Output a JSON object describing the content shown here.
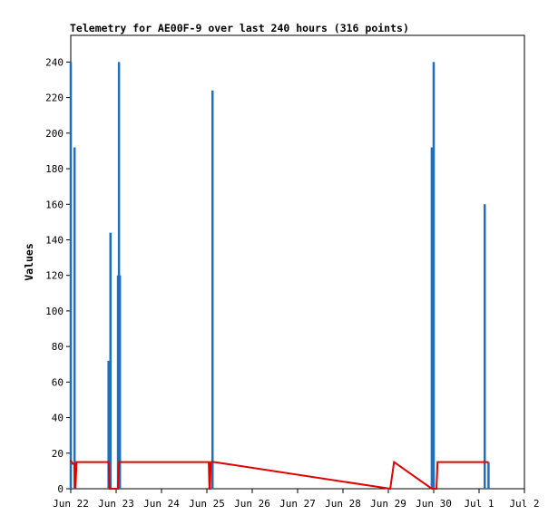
{
  "chart_data": {
    "type": "line",
    "title": "Telemetry for AE00F-9 over last 240 hours (316 points)",
    "xlabel": "",
    "ylabel": "Values",
    "x_unit": "date",
    "xlim": [
      "Jun 22 00:00",
      "Jul 2 00:00"
    ],
    "ylim": [
      0,
      255
    ],
    "x_tick_labels": [
      "Jun 22",
      "Jun 23",
      "Jun 24",
      "Jun 25",
      "Jun 26",
      "Jun 27",
      "Jun 28",
      "Jun 29",
      "Jun 30",
      "Jul 1",
      "Jul 2"
    ],
    "y_ticks": [
      0,
      20,
      40,
      60,
      80,
      100,
      120,
      140,
      160,
      180,
      200,
      220,
      240
    ],
    "grid": false,
    "legend": "none",
    "series": [
      {
        "color": "#1f6fbf",
        "style": "spikes",
        "points": [
          {
            "x": "Jun 22 00:00",
            "y": 240
          },
          {
            "x": "Jun 22 02:00",
            "y": 192
          },
          {
            "x": "Jun 22 20:00",
            "y": 72
          },
          {
            "x": "Jun 22 21:00",
            "y": 144
          },
          {
            "x": "Jun 23 01:00",
            "y": 120
          },
          {
            "x": "Jun 23 01:30",
            "y": 240
          },
          {
            "x": "Jun 23 02:00",
            "y": 120
          },
          {
            "x": "Jun 25 03:00",
            "y": 224
          },
          {
            "x": "Jun 29 23:00",
            "y": 192
          },
          {
            "x": "Jun 30 00:00",
            "y": 240
          },
          {
            "x": "Jul 1 03:00",
            "y": 160
          },
          {
            "x": "Jul 1 05:00",
            "y": 15
          }
        ]
      },
      {
        "color": "#e00000",
        "style": "line",
        "points": [
          {
            "x": "Jun 22 00:00",
            "y": 16
          },
          {
            "x": "Jun 22 01:00",
            "y": 14
          },
          {
            "x": "Jun 22 02:00",
            "y": 14
          },
          {
            "x": "Jun 22 02:30",
            "y": 0
          },
          {
            "x": "Jun 22 03:00",
            "y": 15
          },
          {
            "x": "Jun 22 20:00",
            "y": 15
          },
          {
            "x": "Jun 22 20:30",
            "y": 0
          },
          {
            "x": "Jun 23 01:00",
            "y": 0
          },
          {
            "x": "Jun 23 01:30",
            "y": 15
          },
          {
            "x": "Jun 25 01:00",
            "y": 15
          },
          {
            "x": "Jun 25 01:20",
            "y": 0
          },
          {
            "x": "Jun 25 01:40",
            "y": 0
          },
          {
            "x": "Jun 25 02:00",
            "y": 15
          },
          {
            "x": "Jun 25 04:00",
            "y": 15
          },
          {
            "x": "Jun 29 01:00",
            "y": 0
          },
          {
            "x": "Jun 29 03:00",
            "y": 15
          },
          {
            "x": "Jun 29 23:00",
            "y": 0
          },
          {
            "x": "Jun 30 01:30",
            "y": 0
          },
          {
            "x": "Jun 30 02:00",
            "y": 15
          },
          {
            "x": "Jul 1 05:00",
            "y": 15
          }
        ]
      }
    ]
  }
}
